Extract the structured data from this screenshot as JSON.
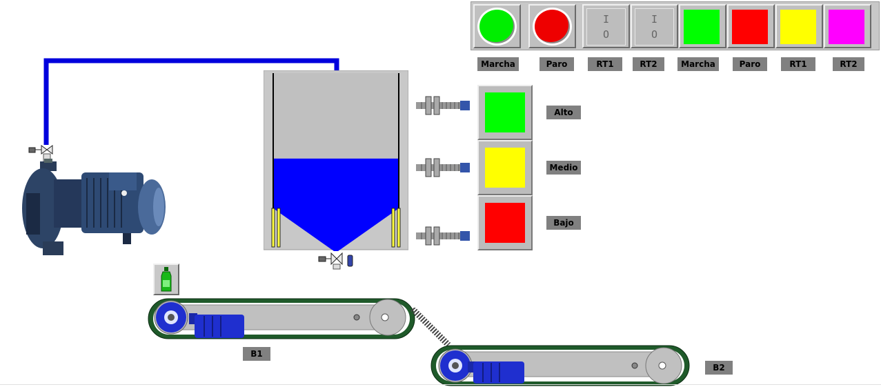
{
  "panel": {
    "indicators": [
      {
        "name": "marcha-round-lamp",
        "kind": "round",
        "color": "#00ee00",
        "label": "Marcha"
      },
      {
        "name": "paro-round-lamp",
        "kind": "round",
        "color": "#ee0000",
        "label": "Paro"
      },
      {
        "name": "rt1-toggle",
        "kind": "toggle",
        "color": "#bdbdbd",
        "label": "RT1",
        "top_glyph": "I",
        "bottom_glyph": "O"
      },
      {
        "name": "rt2-toggle",
        "kind": "toggle",
        "color": "#bdbdbd",
        "label": "RT2",
        "top_glyph": "I",
        "bottom_glyph": "O"
      },
      {
        "name": "marcha-square-lamp",
        "kind": "square",
        "color": "#00ff00",
        "label": "Marcha"
      },
      {
        "name": "paro-square-lamp",
        "kind": "square",
        "color": "#ff0000",
        "label": "Paro"
      },
      {
        "name": "rt1-square-lamp",
        "kind": "square",
        "color": "#ffff00",
        "label": "RT1"
      },
      {
        "name": "rt2-square-lamp",
        "kind": "square",
        "color": "#ff00ff",
        "label": "RT2"
      }
    ]
  },
  "levels": [
    {
      "label": "Alto",
      "color": "#00ff00"
    },
    {
      "label": "Medio",
      "color": "#ffff00"
    },
    {
      "label": "Bajo",
      "color": "#ff0000"
    }
  ],
  "tank": {
    "fill_fraction": 0.52,
    "liquid_color": "#0000ff",
    "body_color": "#c0c0c0"
  },
  "conveyors": {
    "b1_label": "B1",
    "b2_label": "B2"
  },
  "colors": {
    "pipe": "#0000dd",
    "belt": "#1f5a2a",
    "motor": "#1f2fcf",
    "bottle": "#18b818"
  }
}
